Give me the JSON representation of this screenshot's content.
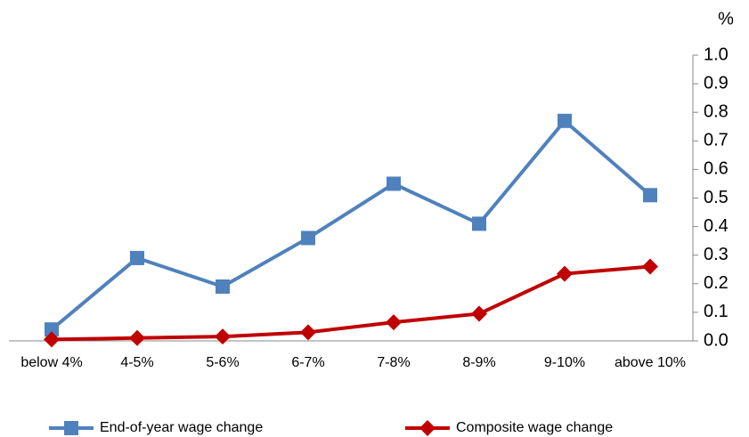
{
  "chart_data": {
    "type": "line",
    "ylabel": "%",
    "categories": [
      "below 4%",
      "4-5%",
      "5-6%",
      "6-7%",
      "7-8%",
      "8-9%",
      "9-10%",
      "above 10%"
    ],
    "series": [
      {
        "name": "End-of-year wage change",
        "color": "#4f81bd",
        "marker": "square",
        "values": [
          0.04,
          0.29,
          0.19,
          0.36,
          0.55,
          0.41,
          0.77,
          0.51
        ]
      },
      {
        "name": "Composite wage change",
        "color": "#c00000",
        "marker": "diamond",
        "values": [
          0.005,
          0.01,
          0.015,
          0.03,
          0.065,
          0.095,
          0.235,
          0.26
        ]
      }
    ],
    "ylim": [
      0,
      1
    ],
    "yticks": [
      {
        "value": 0,
        "label": "0.0"
      },
      0.1,
      0.2,
      0.3,
      0.4,
      0.5,
      0.6,
      0.7,
      0.8,
      0.9,
      {
        "value": 1,
        "label": "1.0"
      }
    ],
    "y_axis_side": "right",
    "grid": false,
    "legend": "bottom"
  }
}
